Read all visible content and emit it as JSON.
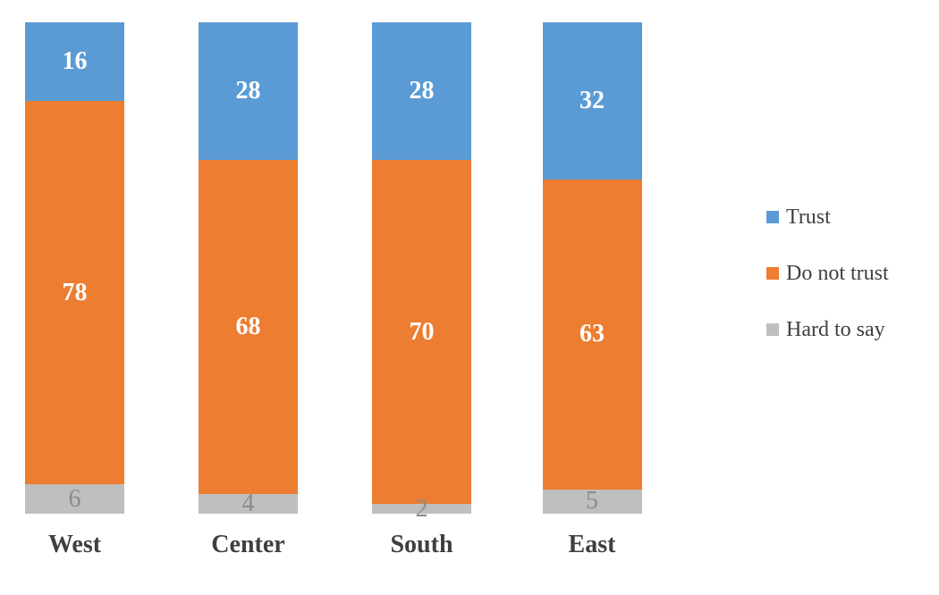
{
  "chart_data": {
    "type": "bar",
    "variant": "stacked-column",
    "title": "",
    "xlabel": "",
    "ylabel": "",
    "ylim": [
      0,
      100
    ],
    "grid": false,
    "axes_visible": false,
    "data_labels": true,
    "legend_position": "right",
    "background": "#FFFFFF",
    "category_label_color": "#3F3F3F",
    "legend_text_color": "#404040",
    "categories": [
      "West",
      "Center",
      "South",
      "East"
    ],
    "series": [
      {
        "name": "Trust",
        "values": [
          16,
          28,
          28,
          32
        ],
        "color": "#5B9BD5",
        "label_color": "#FFFFFF",
        "label_weight": "bold"
      },
      {
        "name": "Do not trust",
        "values": [
          78,
          68,
          70,
          63
        ],
        "color": "#ED7D31",
        "label_color": "#FFFFFF",
        "label_weight": "bold"
      },
      {
        "name": "Hard to say",
        "values": [
          6,
          4,
          2,
          5
        ],
        "color": "#BFBFBF",
        "label_color": "#8C8C8C",
        "label_weight": "normal"
      }
    ]
  }
}
